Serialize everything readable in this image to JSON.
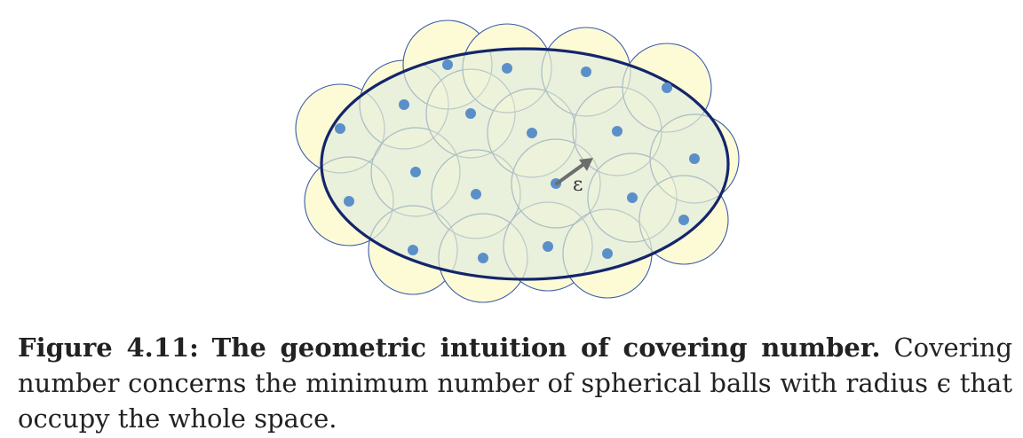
{
  "figure": {
    "epsilon_symbol": "ε",
    "colors": {
      "ellipse_fill": "#e3ecde",
      "ellipse_stroke": "#14256b",
      "ball_fill": "#fcfbd6",
      "ball_stroke": "#3b5bab",
      "ball_inner_stroke": "#a9bcc5",
      "dot": "#5b8fc9",
      "arrow": "#6d6d6d"
    }
  },
  "caption": {
    "label": "Figure 4.11:",
    "title": "The geometric intuition of covering number.",
    "body": "Covering number concerns the minimum number of spherical balls with radius ϵ that occupy the whole space."
  }
}
